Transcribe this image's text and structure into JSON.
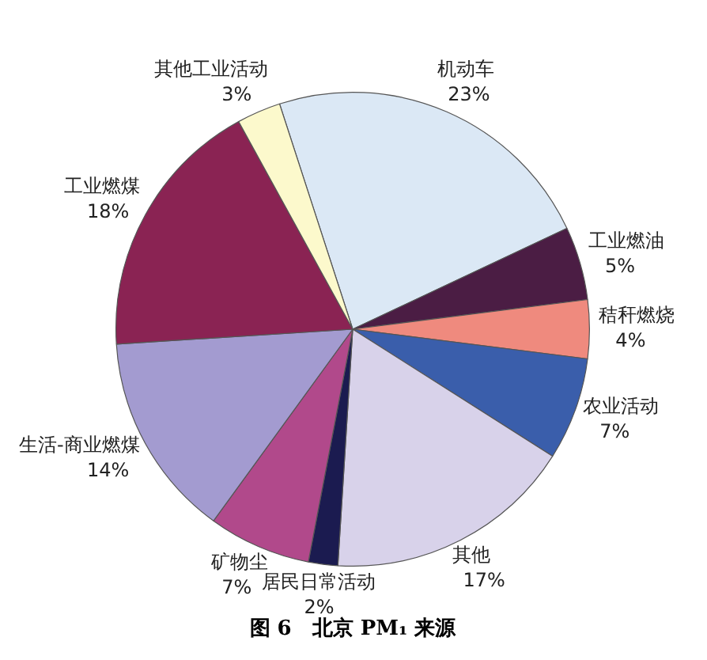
{
  "chart_data": {
    "type": "pie",
    "title": "图 6　北京 PM₁ 来源",
    "categories": [
      "机动车",
      "工业燃油",
      "秸秆燃烧",
      "农业活动",
      "其他",
      "居民日常活动",
      "矿物尘",
      "生活-商业燃煤",
      "工业燃煤",
      "其他工业活动"
    ],
    "values": [
      23,
      5,
      4,
      7,
      17,
      2,
      7,
      14,
      18,
      3
    ],
    "value_labels": [
      "23%",
      "5%",
      "4%",
      "7%",
      "17%",
      "2%",
      "7%",
      "14%",
      "18%",
      "3%"
    ],
    "colors": [
      "#dbe8f5",
      "#4b1d44",
      "#ef8a7e",
      "#3a5eab",
      "#d8d2ea",
      "#1b1b50",
      "#b1498b",
      "#a39bd0",
      "#8a2353",
      "#fcf9cc"
    ],
    "legend": false
  }
}
